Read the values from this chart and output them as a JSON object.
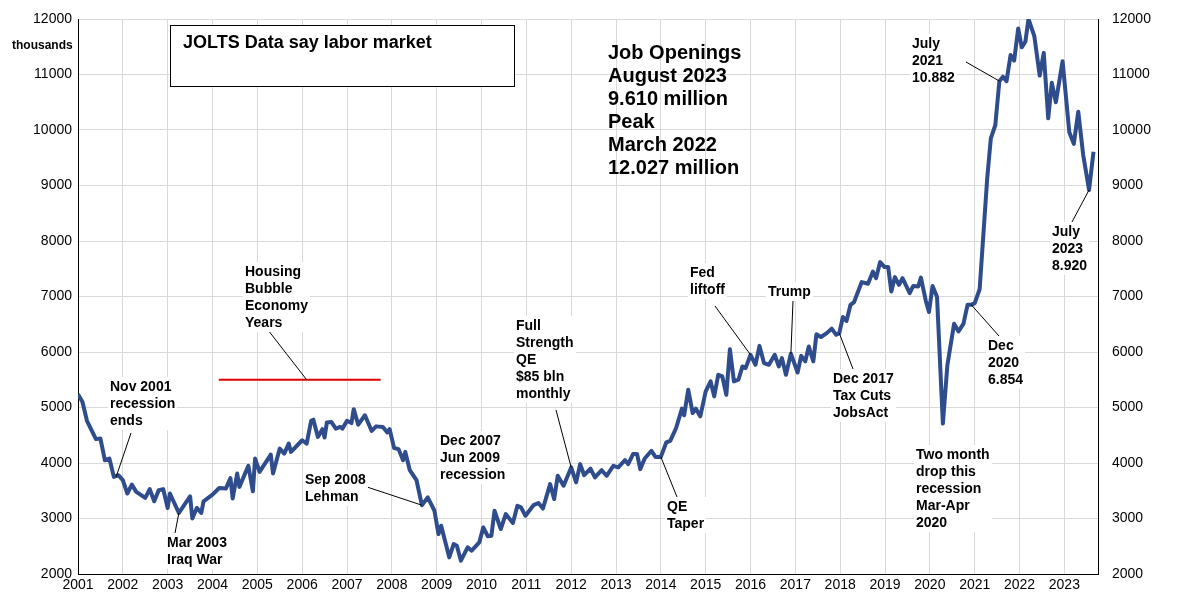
{
  "chart_data": {
    "type": "line",
    "title": "JOLTS Data say labor market",
    "ylabel": "thousands",
    "xlim": [
      2001,
      2023.75
    ],
    "xticks": [
      2001,
      2002,
      2003,
      2004,
      2005,
      2006,
      2007,
      2008,
      2009,
      2010,
      2011,
      2012,
      2013,
      2014,
      2015,
      2016,
      2017,
      2018,
      2019,
      2020,
      2021,
      2022,
      2023
    ],
    "ylim": [
      2000,
      12000
    ],
    "yticks": [
      2000,
      3000,
      4000,
      5000,
      6000,
      7000,
      8000,
      9000,
      10000,
      11000,
      12000
    ],
    "y2lim": [
      2000,
      12000
    ],
    "y2ticks": [
      2000,
      3000,
      4000,
      5000,
      6000,
      7000,
      8000,
      9000,
      10000,
      11000,
      12000
    ],
    "grid": true,
    "legend": false,
    "marker": "none",
    "line_style": "solid",
    "series": [
      {
        "color": "#2f4c8c",
        "x": [
          2001.0,
          2001.1,
          2001.2,
          2001.4,
          2001.5,
          2001.6,
          2001.7,
          2001.8,
          2001.9,
          2002.0,
          2002.1,
          2002.2,
          2002.3,
          2002.5,
          2002.6,
          2002.7,
          2002.8,
          2002.9,
          2003.0,
          2003.05,
          2003.25,
          2003.5,
          2003.55,
          2003.65,
          2003.75,
          2003.8,
          2004.0,
          2004.15,
          2004.3,
          2004.4,
          2004.45,
          2004.55,
          2004.6,
          2004.8,
          2004.9,
          2004.95,
          2005.05,
          2005.3,
          2005.35,
          2005.5,
          2005.6,
          2005.7,
          2005.75,
          2006.0,
          2006.1,
          2006.2,
          2006.25,
          2006.35,
          2006.45,
          2006.5,
          2006.55,
          2006.65,
          2006.75,
          2006.85,
          2006.9,
          2007.0,
          2007.1,
          2007.15,
          2007.25,
          2007.4,
          2007.5,
          2007.55,
          2007.65,
          2007.8,
          2007.9,
          2007.95,
          2008.05,
          2008.15,
          2008.25,
          2008.3,
          2008.4,
          2008.55,
          2008.67,
          2008.8,
          2008.95,
          2009.04,
          2009.1,
          2009.28,
          2009.38,
          2009.45,
          2009.54,
          2009.69,
          2009.78,
          2009.95,
          2010.04,
          2010.14,
          2010.22,
          2010.29,
          2010.43,
          2010.54,
          2010.7,
          2010.8,
          2010.88,
          2010.98,
          2011.16,
          2011.27,
          2011.37,
          2011.53,
          2011.62,
          2011.7,
          2011.83,
          2012.0,
          2012.11,
          2012.2,
          2012.29,
          2012.43,
          2012.53,
          2012.68,
          2012.79,
          2012.94,
          2013.05,
          2013.2,
          2013.27,
          2013.38,
          2013.47,
          2013.54,
          2013.64,
          2013.79,
          2013.88,
          2014.0,
          2014.12,
          2014.21,
          2014.34,
          2014.47,
          2014.52,
          2014.61,
          2014.71,
          2014.78,
          2014.88,
          2015.0,
          2015.11,
          2015.19,
          2015.28,
          2015.37,
          2015.46,
          2015.54,
          2015.63,
          2015.73,
          2015.82,
          2015.89,
          2016.0,
          2016.11,
          2016.2,
          2016.3,
          2016.41,
          2016.54,
          2016.63,
          2016.7,
          2016.79,
          2016.9,
          2017.05,
          2017.13,
          2017.22,
          2017.3,
          2017.4,
          2017.47,
          2017.57,
          2017.7,
          2017.81,
          2017.91,
          2017.98,
          2018.06,
          2018.14,
          2018.23,
          2018.31,
          2018.48,
          2018.62,
          2018.73,
          2018.8,
          2018.89,
          2018.99,
          2019.07,
          2019.14,
          2019.22,
          2019.31,
          2019.39,
          2019.55,
          2019.63,
          2019.74,
          2019.8,
          2019.91,
          2019.98,
          2020.06,
          2020.16,
          2020.29,
          2020.39,
          2020.54,
          2020.64,
          2020.75,
          2020.84,
          2020.92,
          2021.0,
          2021.11,
          2021.28,
          2021.36,
          2021.46,
          2021.55,
          2021.63,
          2021.71,
          2021.8,
          2021.88,
          2021.97,
          2022.05,
          2022.13,
          2022.2,
          2022.33,
          2022.45,
          2022.54,
          2022.64,
          2022.72,
          2022.81,
          2022.96,
          2023.11,
          2023.21,
          2023.31,
          2023.42,
          2023.55,
          2023.65
        ],
        "values": [
          5240,
          5100,
          4760,
          4430,
          4440,
          4050,
          4080,
          3750,
          3780,
          3690,
          3450,
          3610,
          3480,
          3370,
          3530,
          3310,
          3510,
          3530,
          3190,
          3450,
          3100,
          3400,
          3000,
          3190,
          3100,
          3310,
          3430,
          3550,
          3540,
          3730,
          3360,
          3810,
          3570,
          3950,
          3490,
          4080,
          3840,
          4150,
          3810,
          4260,
          4170,
          4350,
          4200,
          4410,
          4350,
          4760,
          4780,
          4470,
          4610,
          4460,
          4730,
          4740,
          4620,
          4650,
          4620,
          4760,
          4720,
          4970,
          4690,
          4860,
          4670,
          4580,
          4660,
          4650,
          4550,
          4610,
          4270,
          4250,
          4050,
          4200,
          3870,
          3690,
          3240,
          3380,
          3140,
          2720,
          2870,
          2300,
          2540,
          2510,
          2240,
          2480,
          2420,
          2570,
          2840,
          2680,
          2690,
          3140,
          2810,
          3080,
          2920,
          3230,
          3200,
          3050,
          3240,
          3280,
          3180,
          3620,
          3350,
          3770,
          3590,
          3920,
          3650,
          3980,
          3780,
          3900,
          3740,
          3870,
          3770,
          3950,
          3920,
          4050,
          3980,
          4160,
          4160,
          3890,
          4080,
          4220,
          4110,
          4110,
          4370,
          4400,
          4630,
          4980,
          4860,
          5320,
          4900,
          4980,
          4840,
          5290,
          5470,
          5200,
          5590,
          5560,
          5230,
          6050,
          5470,
          5500,
          5740,
          5710,
          5950,
          5770,
          6110,
          5800,
          5770,
          5950,
          5740,
          5890,
          5590,
          5970,
          5630,
          5930,
          5830,
          6100,
          5830,
          6320,
          6270,
          6340,
          6420,
          6310,
          6340,
          6630,
          6560,
          6850,
          6900,
          7260,
          7230,
          7450,
          7330,
          7620,
          7530,
          7530,
          7090,
          7350,
          7210,
          7330,
          7060,
          7190,
          7180,
          7340,
          6920,
          6720,
          7190,
          6990,
          4710,
          5760,
          6510,
          6370,
          6510,
          6850,
          6850,
          6880,
          7130,
          9140,
          9850,
          10090,
          10880,
          10960,
          10880,
          11350,
          11250,
          11830,
          11490,
          11590,
          12000,
          11690,
          10980,
          11390,
          10210,
          10850,
          10500,
          11240,
          9960,
          9750,
          10330,
          9550,
          8920,
          9610
        ]
      },
      {
        "type": "line",
        "color": "#e00000",
        "x": [
          2004.14,
          2007.75
        ],
        "values": [
          5500,
          5500
        ]
      }
    ],
    "annotations": [
      {
        "text": "Nov 2001\nrecession\nends",
        "x": 2001.85,
        "y": 3750
      },
      {
        "text": "Mar 2003\nIraq War",
        "x": 2003.25,
        "y": 3100
      },
      {
        "text": "Housing\nBubble\nEconomy\nYears",
        "x": 2006.1,
        "y": 5500
      },
      {
        "text": "Sep 2008\nLehman",
        "x": 2008.67,
        "y": 3240
      },
      "Dec 2007\nJun 2009\nrecession",
      {
        "text": "Full\nStrength\nQE\n$85 bln\nmonthly",
        "x": 2012.0,
        "y": 3920
      },
      {
        "text": "QE\nTaper",
        "x": 2014.0,
        "y": 4110
      },
      {
        "text": "Fed\nliftoff",
        "x": 2016.0,
        "y": 5950
      },
      {
        "text": "Trump",
        "x": 2016.9,
        "y": 5970
      },
      {
        "text": "Dec 2017\nTax Cuts\nJobsAct",
        "x": 2017.98,
        "y": 6340
      },
      "Two month\ndrop this\nrecession\nMar-Apr\n2020",
      {
        "text": "Dec\n2020\n6.854",
        "x": 2020.92,
        "y": 6854
      },
      {
        "text": "July\n2021\n10.882",
        "x": 2021.55,
        "y": 10882
      },
      {
        "text": "July\n2023\n8.920",
        "x": 2023.55,
        "y": 8920
      },
      "Job Openings\nAugust 2023\n9.610 million\nPeak\nMarch 2022\n12.027 million"
    ]
  }
}
